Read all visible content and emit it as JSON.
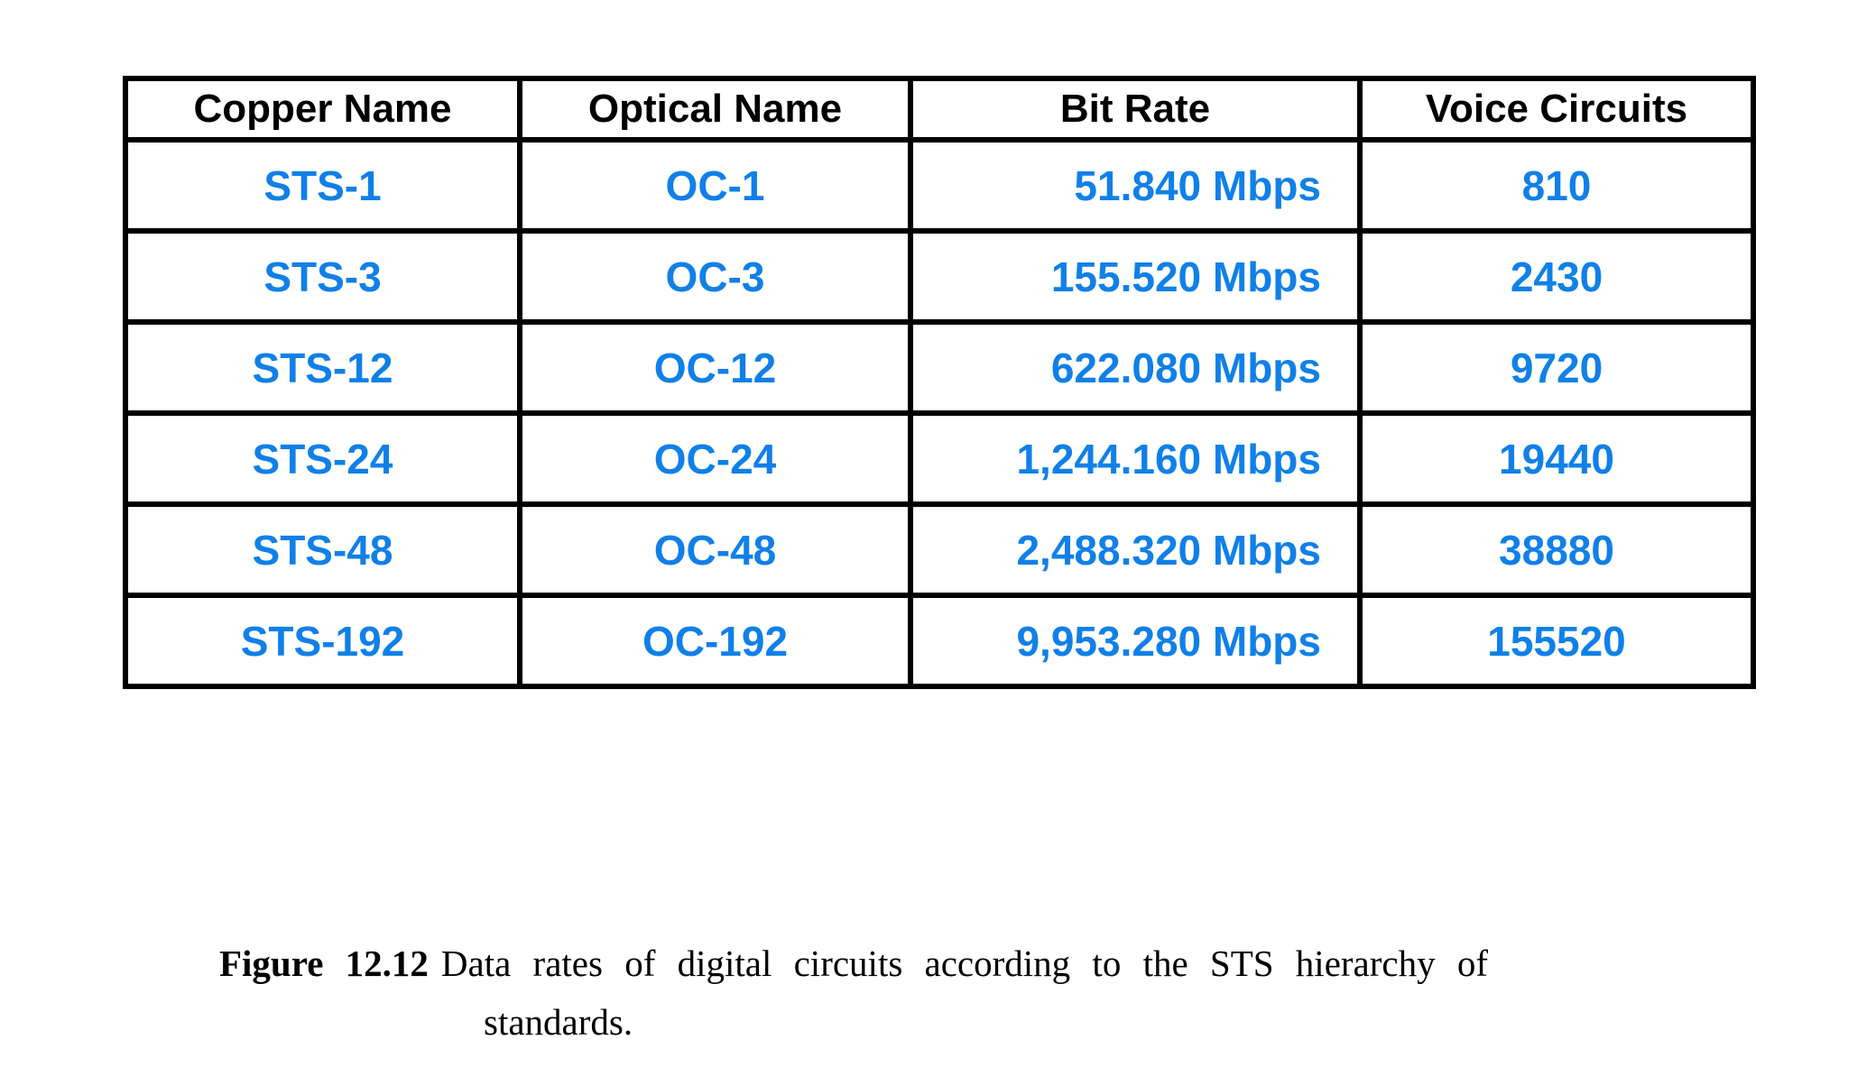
{
  "table": {
    "columns": [
      "Copper Name",
      "Optical Name",
      "Bit Rate",
      "Voice Circuits"
    ],
    "rows": [
      [
        "STS-1",
        "OC-1",
        "51.840 Mbps",
        "810"
      ],
      [
        "STS-3",
        "OC-3",
        "155.520 Mbps",
        "2430"
      ],
      [
        "STS-12",
        "OC-12",
        "622.080 Mbps",
        "9720"
      ],
      [
        "STS-24",
        "OC-24",
        "1,244.160 Mbps",
        "19440"
      ],
      [
        "STS-48",
        "OC-48",
        "2,488.320 Mbps",
        "38880"
      ],
      [
        "STS-192",
        "OC-192",
        "9,953.280 Mbps",
        "155520"
      ]
    ],
    "right_aligned_column_index": 2
  },
  "caption": {
    "label": "Figure 12.12",
    "line1": "Data rates of digital circuits according to the STS hierarchy of",
    "line2": "standards."
  },
  "colors": {
    "data_text": "#1080E8",
    "header_text": "#000000",
    "border": "#000000",
    "background": "#FFFFFF"
  }
}
